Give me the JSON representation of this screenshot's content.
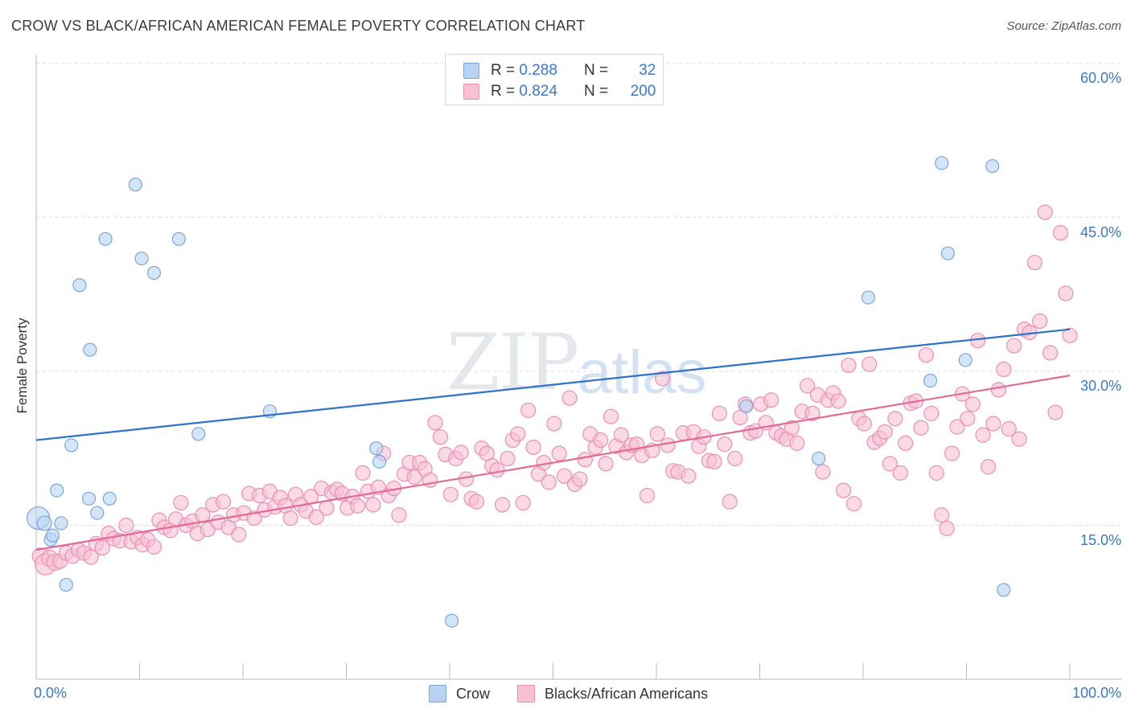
{
  "title": "CROW VS BLACK/AFRICAN AMERICAN FEMALE POVERTY CORRELATION CHART",
  "source": "Source: ZipAtlas.com",
  "watermark": {
    "zip": "ZIP",
    "atlas": "atlas"
  },
  "legend": {
    "rows": [
      {
        "r_label": "R =",
        "r_value": "0.288",
        "n_label": "N =",
        "n_value": "32"
      },
      {
        "r_label": "R =",
        "r_value": "0.824",
        "n_label": "N =",
        "n_value": "200"
      }
    ]
  },
  "bottom_legend": {
    "crow": "Crow",
    "black": "Blacks/African Americans"
  },
  "colors": {
    "crow_fill": "#b8d3f2",
    "crow_stroke": "#7aa6dc",
    "crow_line": "#2f72c9",
    "black_fill": "#f8c0d3",
    "black_stroke": "#eb8fb0",
    "black_line": "#e26a96",
    "tick_text": "#3a78c9",
    "grid": "#dddddd"
  },
  "chart_data": {
    "type": "scatter",
    "title": "CROW VS BLACK/AFRICAN AMERICAN FEMALE POVERTY CORRELATION CHART",
    "xlabel": "",
    "ylabel": "Female Poverty",
    "xlim": [
      0,
      100
    ],
    "ylim": [
      0,
      60
    ],
    "x_tick_labels": [
      "0.0%",
      "100.0%"
    ],
    "y_ticks": [
      15,
      30,
      45,
      60
    ],
    "y_tick_labels": [
      "15.0%",
      "30.0%",
      "45.0%",
      "60.0%"
    ],
    "grid": true,
    "legend_position": "top-center",
    "series": [
      {
        "name": "Crow",
        "r": 0.288,
        "n": 32,
        "trend": {
          "x": [
            0,
            100
          ],
          "y": [
            23.3,
            34.1
          ]
        },
        "points": [
          [
            0.2,
            15.7,
            14
          ],
          [
            0.8,
            15.2,
            9
          ],
          [
            1.4,
            13.6,
            8
          ],
          [
            1.6,
            14.0,
            8
          ],
          [
            2.0,
            18.4,
            8
          ],
          [
            2.4,
            15.2,
            8
          ],
          [
            2.9,
            9.2,
            8
          ],
          [
            3.4,
            22.8,
            8
          ],
          [
            4.2,
            38.4,
            8
          ],
          [
            5.2,
            32.1,
            8
          ],
          [
            5.1,
            17.6,
            8
          ],
          [
            5.9,
            16.2,
            8
          ],
          [
            6.7,
            42.9,
            8
          ],
          [
            7.1,
            17.6,
            8
          ],
          [
            9.6,
            48.2,
            8
          ],
          [
            10.2,
            41.0,
            8
          ],
          [
            11.4,
            39.6,
            8
          ],
          [
            13.8,
            42.9,
            8
          ],
          [
            15.7,
            23.9,
            8
          ],
          [
            22.6,
            26.1,
            8
          ],
          [
            32.9,
            22.5,
            8
          ],
          [
            33.2,
            21.2,
            8
          ],
          [
            40.2,
            5.7,
            8
          ],
          [
            68.7,
            26.6,
            8
          ],
          [
            75.7,
            21.5,
            8
          ],
          [
            80.5,
            37.2,
            8
          ],
          [
            86.5,
            29.1,
            8
          ],
          [
            87.6,
            50.3,
            8
          ],
          [
            88.2,
            41.5,
            8
          ],
          [
            89.9,
            31.1,
            8
          ],
          [
            92.5,
            50.0,
            8
          ],
          [
            93.6,
            8.7,
            8
          ]
        ]
      },
      {
        "name": "Blacks/African Americans",
        "r": 0.824,
        "n": 200,
        "trend": {
          "x": [
            0,
            100
          ],
          "y": [
            12.6,
            29.6
          ]
        },
        "points": [
          [
            0.4,
            12.0,
            10
          ],
          [
            0.9,
            11.2,
            13
          ],
          [
            1.3,
            11.8,
            10
          ],
          [
            1.8,
            11.4,
            10
          ],
          [
            2.3,
            11.5,
            9
          ],
          [
            2.9,
            12.3,
            9
          ],
          [
            3.5,
            12.0,
            9
          ],
          [
            4.1,
            12.6,
            9
          ],
          [
            4.6,
            12.3,
            9
          ],
          [
            5.3,
            11.9,
            9
          ],
          [
            5.8,
            13.2,
            9
          ],
          [
            6.4,
            12.8,
            9
          ],
          [
            7.0,
            14.2,
            9
          ],
          [
            7.5,
            13.7,
            9
          ],
          [
            8.1,
            13.5,
            9
          ],
          [
            8.7,
            15.0,
            9
          ],
          [
            9.2,
            13.4,
            9
          ],
          [
            9.8,
            13.8,
            9
          ],
          [
            10.3,
            13.1,
            9
          ],
          [
            10.8,
            13.6,
            9
          ],
          [
            11.4,
            12.9,
            9
          ],
          [
            11.9,
            15.5,
            9
          ],
          [
            12.4,
            14.8,
            9
          ],
          [
            13.0,
            14.5,
            9
          ],
          [
            13.5,
            15.6,
            9
          ],
          [
            14.0,
            17.2,
            9
          ],
          [
            14.5,
            15.0,
            9
          ],
          [
            15.1,
            15.4,
            9
          ],
          [
            15.6,
            14.2,
            9
          ],
          [
            16.1,
            16.0,
            9
          ],
          [
            16.6,
            14.6,
            9
          ],
          [
            17.1,
            17.0,
            9
          ],
          [
            17.6,
            15.3,
            9
          ],
          [
            18.1,
            17.3,
            9
          ],
          [
            18.6,
            14.8,
            9
          ],
          [
            19.1,
            16.0,
            9
          ],
          [
            19.6,
            14.1,
            9
          ],
          [
            20.1,
            16.2,
            9
          ],
          [
            20.6,
            18.1,
            9
          ],
          [
            21.1,
            15.7,
            9
          ],
          [
            21.6,
            17.9,
            9
          ],
          [
            22.1,
            16.5,
            9
          ],
          [
            22.6,
            18.3,
            9
          ],
          [
            23.1,
            16.8,
            9
          ],
          [
            23.6,
            17.7,
            9
          ],
          [
            24.1,
            16.9,
            9
          ],
          [
            24.6,
            15.7,
            9
          ],
          [
            25.1,
            18.0,
            9
          ],
          [
            25.6,
            17.0,
            9
          ],
          [
            26.1,
            16.4,
            9
          ],
          [
            26.6,
            17.8,
            9
          ],
          [
            27.1,
            15.8,
            9
          ],
          [
            27.6,
            18.6,
            9
          ],
          [
            28.1,
            16.7,
            9
          ],
          [
            28.6,
            18.2,
            9
          ],
          [
            29.1,
            18.5,
            9
          ],
          [
            29.6,
            18.1,
            9
          ],
          [
            30.1,
            16.7,
            9
          ],
          [
            30.6,
            17.8,
            9
          ],
          [
            31.1,
            16.9,
            9
          ],
          [
            31.6,
            20.1,
            9
          ],
          [
            32.1,
            18.3,
            9
          ],
          [
            32.6,
            17.0,
            9
          ],
          [
            33.1,
            18.7,
            9
          ],
          [
            33.6,
            22.0,
            9
          ],
          [
            34.1,
            17.9,
            9
          ],
          [
            34.6,
            18.6,
            9
          ],
          [
            35.1,
            16.0,
            9
          ],
          [
            35.6,
            20.0,
            9
          ],
          [
            36.1,
            21.1,
            9
          ],
          [
            36.6,
            19.7,
            9
          ],
          [
            37.1,
            21.1,
            9
          ],
          [
            37.6,
            20.5,
            9
          ],
          [
            38.1,
            19.4,
            9
          ],
          [
            38.6,
            25.0,
            9
          ],
          [
            39.1,
            23.6,
            9
          ],
          [
            39.6,
            21.9,
            9
          ],
          [
            40.1,
            18.0,
            9
          ],
          [
            40.6,
            21.5,
            9
          ],
          [
            41.1,
            22.1,
            9
          ],
          [
            41.6,
            19.5,
            9
          ],
          [
            42.1,
            17.6,
            9
          ],
          [
            42.6,
            17.3,
            9
          ],
          [
            43.1,
            22.5,
            9
          ],
          [
            43.6,
            22.0,
            9
          ],
          [
            44.1,
            20.8,
            9
          ],
          [
            44.6,
            20.4,
            9
          ],
          [
            45.1,
            17.0,
            9
          ],
          [
            45.6,
            21.5,
            9
          ],
          [
            46.1,
            23.3,
            9
          ],
          [
            46.6,
            23.9,
            9
          ],
          [
            47.1,
            17.2,
            9
          ],
          [
            47.6,
            26.2,
            9
          ],
          [
            48.1,
            22.6,
            9
          ],
          [
            48.6,
            20.0,
            9
          ],
          [
            49.1,
            21.1,
            9
          ],
          [
            49.6,
            19.2,
            9
          ],
          [
            50.1,
            24.9,
            9
          ],
          [
            50.6,
            22.0,
            9
          ],
          [
            51.1,
            19.8,
            9
          ],
          [
            51.6,
            27.4,
            9
          ],
          [
            52.1,
            19.0,
            9
          ],
          [
            52.6,
            19.5,
            9
          ],
          [
            53.1,
            21.4,
            9
          ],
          [
            53.6,
            23.9,
            9
          ],
          [
            54.1,
            22.6,
            9
          ],
          [
            54.6,
            23.3,
            9
          ],
          [
            55.1,
            21.0,
            9
          ],
          [
            55.6,
            25.6,
            9
          ],
          [
            56.1,
            22.7,
            9
          ],
          [
            56.6,
            23.8,
            9
          ],
          [
            57.1,
            22.1,
            9
          ],
          [
            57.6,
            22.8,
            9
          ],
          [
            58.1,
            22.9,
            9
          ],
          [
            58.6,
            21.8,
            9
          ],
          [
            59.1,
            17.9,
            9
          ],
          [
            59.6,
            22.3,
            9
          ],
          [
            60.1,
            23.9,
            9
          ],
          [
            60.6,
            29.3,
            9
          ],
          [
            61.1,
            22.8,
            9
          ],
          [
            61.6,
            20.3,
            9
          ],
          [
            62.1,
            20.2,
            9
          ],
          [
            62.6,
            24.0,
            9
          ],
          [
            63.1,
            19.8,
            9
          ],
          [
            63.6,
            24.1,
            9
          ],
          [
            64.1,
            22.7,
            9
          ],
          [
            64.6,
            23.6,
            9
          ],
          [
            65.1,
            21.3,
            9
          ],
          [
            65.6,
            21.2,
            9
          ],
          [
            66.1,
            25.9,
            9
          ],
          [
            66.6,
            22.9,
            9
          ],
          [
            67.1,
            17.3,
            9
          ],
          [
            67.6,
            21.5,
            9
          ],
          [
            68.1,
            25.5,
            9
          ],
          [
            68.6,
            26.8,
            9
          ],
          [
            69.1,
            24.0,
            9
          ],
          [
            69.6,
            24.2,
            9
          ],
          [
            70.1,
            26.8,
            9
          ],
          [
            70.6,
            25.0,
            9
          ],
          [
            71.1,
            27.2,
            9
          ],
          [
            71.6,
            24.0,
            9
          ],
          [
            72.1,
            23.7,
            9
          ],
          [
            72.6,
            23.4,
            9
          ],
          [
            73.1,
            24.5,
            9
          ],
          [
            73.6,
            23.0,
            9
          ],
          [
            74.1,
            26.1,
            9
          ],
          [
            74.6,
            28.6,
            9
          ],
          [
            75.1,
            25.9,
            9
          ],
          [
            75.6,
            27.7,
            9
          ],
          [
            76.1,
            20.2,
            9
          ],
          [
            76.6,
            27.2,
            9
          ],
          [
            77.1,
            27.9,
            9
          ],
          [
            77.6,
            27.1,
            9
          ],
          [
            78.1,
            18.4,
            9
          ],
          [
            78.6,
            30.6,
            9
          ],
          [
            79.1,
            17.1,
            9
          ],
          [
            79.6,
            25.4,
            9
          ],
          [
            80.1,
            24.9,
            9
          ],
          [
            80.6,
            30.7,
            9
          ],
          [
            81.1,
            23.1,
            9
          ],
          [
            81.6,
            23.5,
            9
          ],
          [
            82.1,
            24.1,
            9
          ],
          [
            82.6,
            21.0,
            9
          ],
          [
            83.1,
            25.4,
            9
          ],
          [
            83.6,
            20.1,
            9
          ],
          [
            84.1,
            23.0,
            9
          ],
          [
            84.6,
            26.9,
            9
          ],
          [
            85.1,
            27.1,
            9
          ],
          [
            85.6,
            24.5,
            9
          ],
          [
            86.1,
            31.6,
            9
          ],
          [
            86.6,
            25.9,
            9
          ],
          [
            87.1,
            20.1,
            9
          ],
          [
            87.6,
            16.0,
            9
          ],
          [
            88.1,
            14.7,
            9
          ],
          [
            88.6,
            22.0,
            9
          ],
          [
            89.1,
            24.6,
            9
          ],
          [
            89.6,
            27.8,
            9
          ],
          [
            90.1,
            25.4,
            9
          ],
          [
            90.6,
            26.8,
            9
          ],
          [
            91.1,
            33.0,
            9
          ],
          [
            91.6,
            23.8,
            9
          ],
          [
            92.1,
            20.7,
            9
          ],
          [
            92.6,
            24.9,
            9
          ],
          [
            93.1,
            28.2,
            9
          ],
          [
            93.6,
            30.2,
            9
          ],
          [
            94.1,
            24.4,
            9
          ],
          [
            94.6,
            32.5,
            9
          ],
          [
            95.1,
            23.4,
            9
          ],
          [
            95.6,
            34.1,
            9
          ],
          [
            96.1,
            33.8,
            9
          ],
          [
            96.6,
            40.6,
            9
          ],
          [
            97.1,
            34.9,
            9
          ],
          [
            97.6,
            45.5,
            9
          ],
          [
            98.1,
            31.8,
            9
          ],
          [
            98.6,
            26.0,
            9
          ],
          [
            99.1,
            43.5,
            9
          ],
          [
            99.6,
            37.6,
            9
          ],
          [
            100.0,
            33.5,
            9
          ]
        ]
      }
    ]
  }
}
